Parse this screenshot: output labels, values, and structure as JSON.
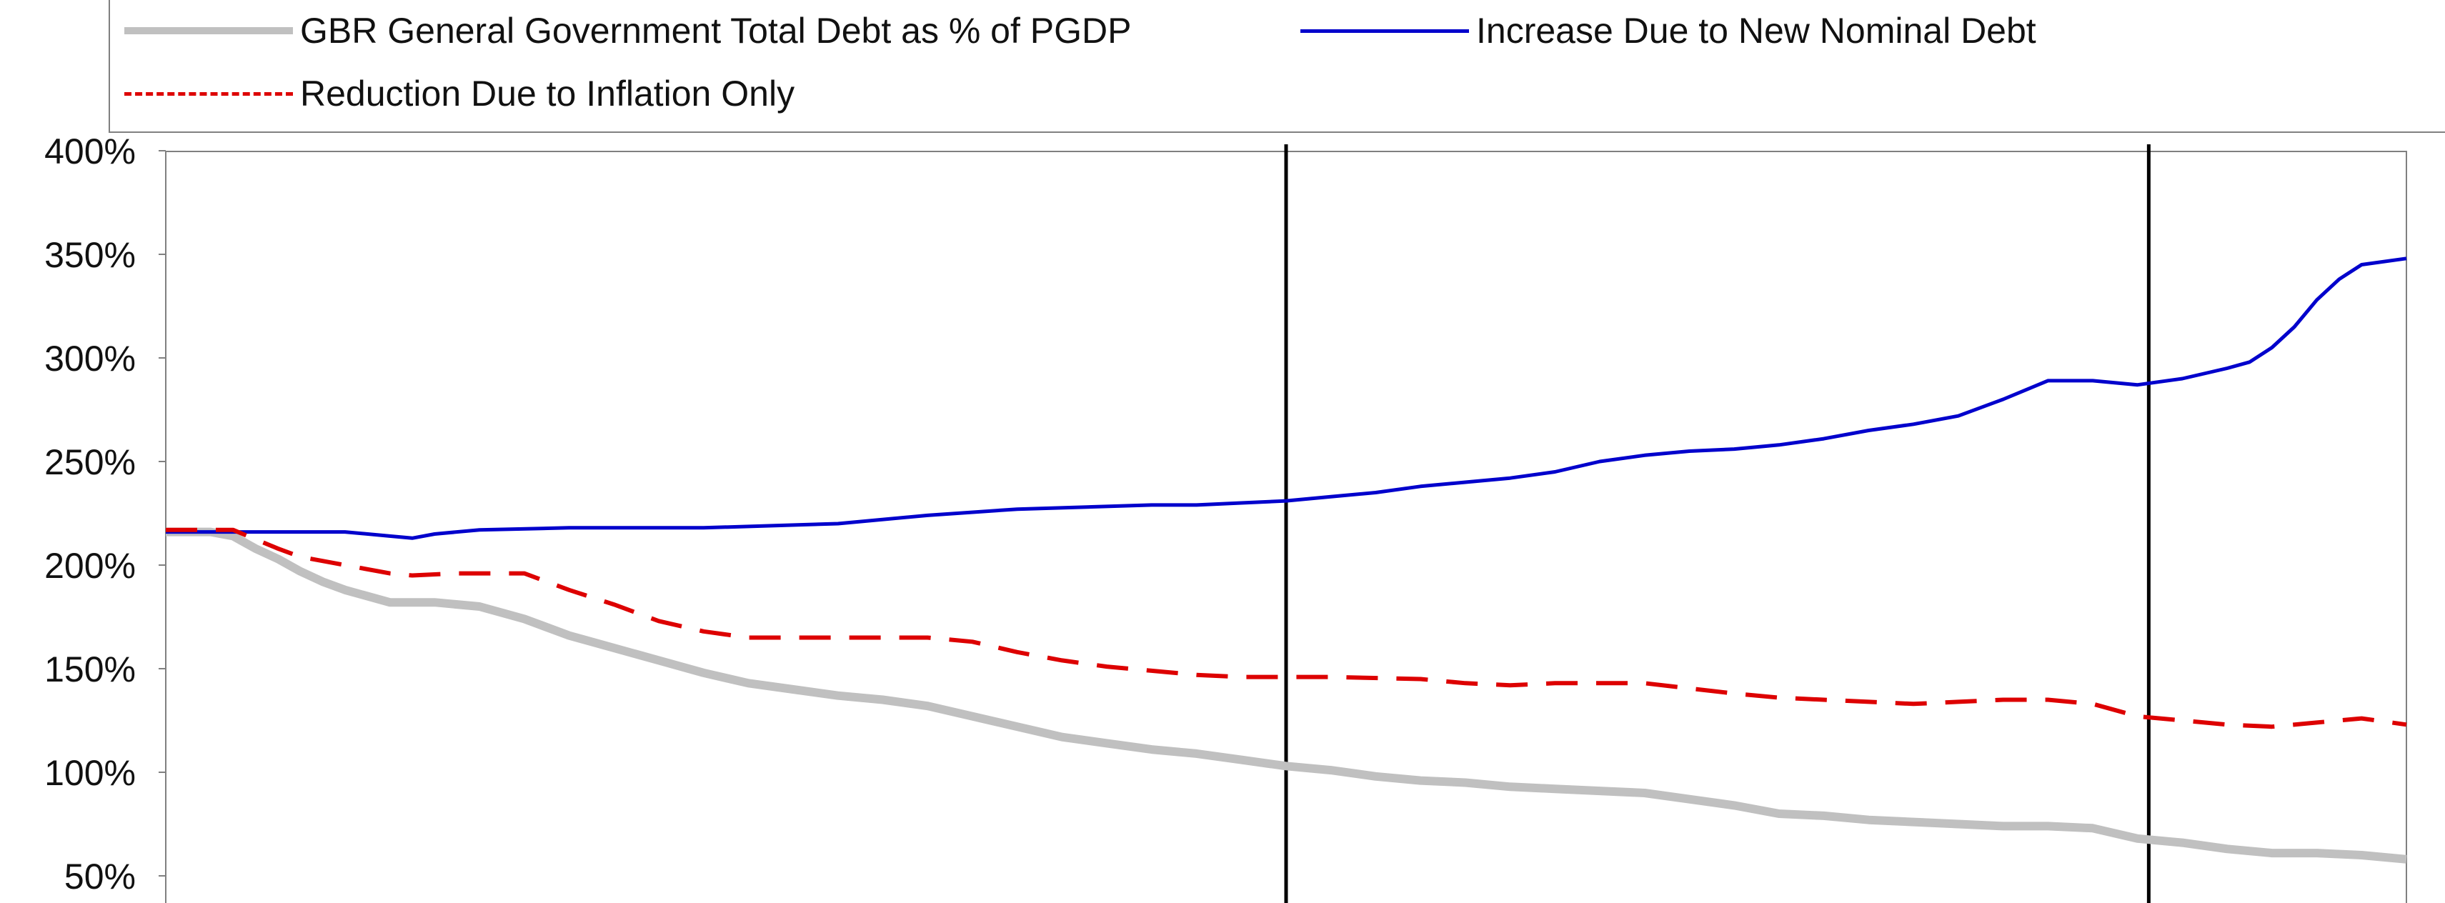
{
  "chart_data": {
    "type": "line",
    "title": "",
    "xlabel": "",
    "ylabel": "",
    "ylim": [
      50,
      400
    ],
    "yticks": [
      "50%",
      "100%",
      "150%",
      "200%",
      "250%",
      "300%",
      "350%",
      "400%"
    ],
    "x_index_range": [
      0,
      100
    ],
    "vertical_markers": [
      50,
      88.5
    ],
    "grid": false,
    "legend_position": "top",
    "series": [
      {
        "name": "GBR General Government Total Debt as % of PGDP",
        "color": "#c0c0c0",
        "dash": "solid",
        "points": [
          [
            0,
            216
          ],
          [
            2,
            216
          ],
          [
            3,
            214
          ],
          [
            4,
            208
          ],
          [
            5,
            203
          ],
          [
            6,
            197
          ],
          [
            7,
            192
          ],
          [
            8,
            188
          ],
          [
            10,
            182
          ],
          [
            12,
            182
          ],
          [
            14,
            180
          ],
          [
            16,
            174
          ],
          [
            18,
            166
          ],
          [
            20,
            160
          ],
          [
            22,
            154
          ],
          [
            24,
            148
          ],
          [
            26,
            143
          ],
          [
            28,
            140
          ],
          [
            30,
            137
          ],
          [
            32,
            135
          ],
          [
            34,
            132
          ],
          [
            36,
            127
          ],
          [
            38,
            122
          ],
          [
            40,
            117
          ],
          [
            42,
            114
          ],
          [
            44,
            111
          ],
          [
            46,
            109
          ],
          [
            48,
            106
          ],
          [
            50,
            103
          ],
          [
            52,
            101
          ],
          [
            54,
            98
          ],
          [
            56,
            96
          ],
          [
            58,
            95
          ],
          [
            60,
            93
          ],
          [
            62,
            92
          ],
          [
            64,
            91
          ],
          [
            66,
            90
          ],
          [
            68,
            87
          ],
          [
            70,
            84
          ],
          [
            72,
            80
          ],
          [
            74,
            79
          ],
          [
            76,
            77
          ],
          [
            78,
            76
          ],
          [
            80,
            75
          ],
          [
            82,
            74
          ],
          [
            84,
            74
          ],
          [
            86,
            73
          ],
          [
            88,
            68
          ],
          [
            90,
            66
          ],
          [
            92,
            63
          ],
          [
            94,
            61
          ],
          [
            96,
            61
          ],
          [
            98,
            60
          ],
          [
            100,
            58
          ]
        ]
      },
      {
        "name": "Increase Due to New Nominal Debt",
        "color": "#0000cc",
        "dash": "solid",
        "points": [
          [
            0,
            216
          ],
          [
            5,
            216
          ],
          [
            8,
            216
          ],
          [
            10,
            214
          ],
          [
            11,
            213
          ],
          [
            12,
            215
          ],
          [
            14,
            217
          ],
          [
            18,
            218
          ],
          [
            24,
            218
          ],
          [
            30,
            220
          ],
          [
            34,
            224
          ],
          [
            38,
            227
          ],
          [
            44,
            229
          ],
          [
            46,
            229
          ],
          [
            48,
            230
          ],
          [
            50,
            231
          ],
          [
            52,
            233
          ],
          [
            54,
            235
          ],
          [
            56,
            238
          ],
          [
            58,
            240
          ],
          [
            60,
            242
          ],
          [
            62,
            245
          ],
          [
            64,
            250
          ],
          [
            66,
            253
          ],
          [
            68,
            255
          ],
          [
            70,
            256
          ],
          [
            72,
            258
          ],
          [
            74,
            261
          ],
          [
            76,
            265
          ],
          [
            78,
            268
          ],
          [
            80,
            272
          ],
          [
            82,
            280
          ],
          [
            84,
            289
          ],
          [
            86,
            289
          ],
          [
            88,
            287
          ],
          [
            90,
            290
          ],
          [
            92,
            295
          ],
          [
            93,
            298
          ],
          [
            94,
            305
          ],
          [
            95,
            315
          ],
          [
            96,
            328
          ],
          [
            97,
            338
          ],
          [
            98,
            345
          ],
          [
            100,
            348
          ]
        ]
      },
      {
        "name": "Reduction Due to Inflation Only",
        "color": "#dd0000",
        "dash": "dashed",
        "points": [
          [
            0,
            217
          ],
          [
            3,
            217
          ],
          [
            5,
            208
          ],
          [
            6,
            204
          ],
          [
            8,
            200
          ],
          [
            10,
            196
          ],
          [
            11,
            195
          ],
          [
            13,
            196
          ],
          [
            16,
            196
          ],
          [
            18,
            188
          ],
          [
            20,
            181
          ],
          [
            22,
            173
          ],
          [
            24,
            168
          ],
          [
            26,
            165
          ],
          [
            28,
            165
          ],
          [
            30,
            165
          ],
          [
            32,
            165
          ],
          [
            34,
            165
          ],
          [
            36,
            163
          ],
          [
            38,
            158
          ],
          [
            40,
            154
          ],
          [
            42,
            151
          ],
          [
            44,
            149
          ],
          [
            46,
            147
          ],
          [
            48,
            146
          ],
          [
            50,
            146
          ],
          [
            52,
            146
          ],
          [
            56,
            145
          ],
          [
            58,
            143
          ],
          [
            60,
            142
          ],
          [
            62,
            143
          ],
          [
            66,
            143
          ],
          [
            70,
            138
          ],
          [
            72,
            136
          ],
          [
            74,
            135
          ],
          [
            76,
            134
          ],
          [
            78,
            133
          ],
          [
            80,
            134
          ],
          [
            82,
            135
          ],
          [
            84,
            135
          ],
          [
            86,
            133
          ],
          [
            88,
            127
          ],
          [
            90,
            125
          ],
          [
            92,
            123
          ],
          [
            94,
            122
          ],
          [
            96,
            124
          ],
          [
            98,
            126
          ],
          [
            100,
            123
          ]
        ]
      }
    ]
  }
}
